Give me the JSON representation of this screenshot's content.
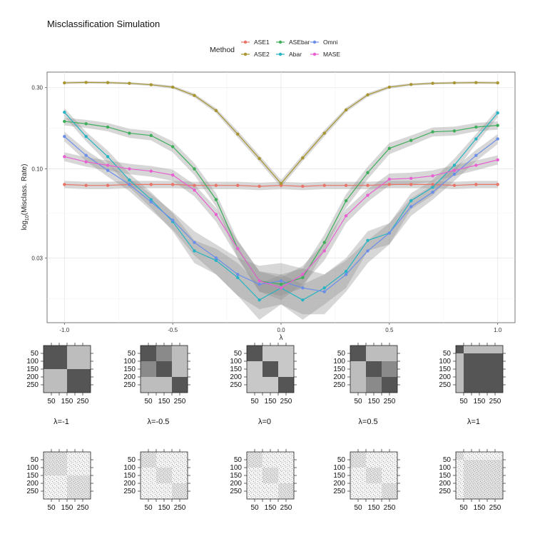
{
  "chart_data": {
    "type": "line",
    "title": "Misclassification Simulation",
    "xlabel": "λ",
    "ylabel": "log10(Misclass. Rate)",
    "ylabel_main": "log",
    "ylabel_sub": "10",
    "ylabel_rest": "(Misclass. Rate)",
    "y_scale": "log10",
    "xlim": [
      -1.08,
      1.08
    ],
    "ylim": [
      0.0125,
      0.37
    ],
    "x_ticks": [
      -1.0,
      -0.5,
      0.0,
      0.5,
      1.0
    ],
    "x_tick_labels": [
      "-1.0",
      "-0.5",
      "0.0",
      "0.5",
      "1.0"
    ],
    "y_ticks": [
      0.03,
      0.1,
      0.3
    ],
    "y_tick_labels": [
      "0.03",
      "0.10",
      "0.30"
    ],
    "grid": true,
    "legend": {
      "title": "Method",
      "placement": "top",
      "entries": [
        "ASE1",
        "ASE2",
        "ASEbar",
        "Abar",
        "Omni",
        "MASE"
      ]
    },
    "x": [
      -1.0,
      -0.9,
      -0.8,
      -0.7,
      -0.6,
      -0.5,
      -0.4,
      -0.3,
      -0.2,
      -0.1,
      0.0,
      0.1,
      0.2,
      0.3,
      0.4,
      0.5,
      0.6,
      0.7,
      0.8,
      0.9,
      1.0
    ],
    "series": [
      {
        "name": "ASE1",
        "color": "#e8746a",
        "values": [
          0.081,
          0.08,
          0.08,
          0.081,
          0.081,
          0.081,
          0.08,
          0.08,
          0.08,
          0.079,
          0.08,
          0.079,
          0.08,
          0.08,
          0.08,
          0.081,
          0.081,
          0.081,
          0.08,
          0.081,
          0.081
        ],
        "band": [
          0.004,
          0.004,
          0.004,
          0.004,
          0.004,
          0.004,
          0.004,
          0.004,
          0.004,
          0.004,
          0.004,
          0.004,
          0.004,
          0.004,
          0.004,
          0.004,
          0.004,
          0.004,
          0.004,
          0.004,
          0.004
        ]
      },
      {
        "name": "ASE2",
        "color": "#a89632",
        "values": [
          0.32,
          0.322,
          0.321,
          0.318,
          0.312,
          0.302,
          0.27,
          0.22,
          0.16,
          0.115,
          0.082,
          0.116,
          0.162,
          0.222,
          0.272,
          0.302,
          0.313,
          0.318,
          0.32,
          0.321,
          0.32
        ],
        "band": [
          0.005,
          0.005,
          0.005,
          0.005,
          0.005,
          0.006,
          0.007,
          0.007,
          0.007,
          0.005,
          0.004,
          0.005,
          0.007,
          0.007,
          0.007,
          0.006,
          0.005,
          0.005,
          0.005,
          0.005,
          0.005
        ]
      },
      {
        "name": "ASEbar",
        "color": "#3fae5b",
        "values": [
          0.19,
          0.184,
          0.176,
          0.162,
          0.157,
          0.135,
          0.1,
          0.066,
          0.034,
          0.022,
          0.021,
          0.023,
          0.037,
          0.065,
          0.095,
          0.132,
          0.147,
          0.165,
          0.167,
          0.176,
          0.18
        ],
        "band": [
          0.01,
          0.01,
          0.01,
          0.01,
          0.01,
          0.01,
          0.008,
          0.006,
          0.004,
          0.003,
          0.003,
          0.003,
          0.004,
          0.006,
          0.008,
          0.01,
          0.01,
          0.01,
          0.01,
          0.01,
          0.01
        ]
      },
      {
        "name": "Abar",
        "color": "#27b4c3",
        "values": [
          0.215,
          0.155,
          0.118,
          0.086,
          0.066,
          0.049,
          0.033,
          0.029,
          0.023,
          0.017,
          0.02,
          0.017,
          0.02,
          0.025,
          0.038,
          0.042,
          0.065,
          0.078,
          0.105,
          0.15,
          0.213
        ],
        "band": [
          0.012,
          0.01,
          0.01,
          0.008,
          0.007,
          0.006,
          0.005,
          0.005,
          0.005,
          0.004,
          0.004,
          0.004,
          0.004,
          0.005,
          0.005,
          0.006,
          0.007,
          0.008,
          0.01,
          0.01,
          0.012
        ]
      },
      {
        "name": "Omni",
        "color": "#6b8ee8",
        "values": [
          0.155,
          0.12,
          0.098,
          0.081,
          0.064,
          0.05,
          0.037,
          0.03,
          0.024,
          0.021,
          0.022,
          0.02,
          0.019,
          0.024,
          0.033,
          0.042,
          0.06,
          0.073,
          0.093,
          0.12,
          0.15
        ],
        "band": [
          0.01,
          0.009,
          0.008,
          0.007,
          0.007,
          0.006,
          0.006,
          0.006,
          0.006,
          0.006,
          0.006,
          0.006,
          0.005,
          0.005,
          0.005,
          0.006,
          0.007,
          0.007,
          0.008,
          0.009,
          0.01
        ]
      },
      {
        "name": "MASE",
        "color": "#e85fd2",
        "values": [
          0.118,
          0.11,
          0.105,
          0.1,
          0.097,
          0.092,
          0.075,
          0.054,
          0.034,
          0.022,
          0.02,
          0.024,
          0.033,
          0.053,
          0.07,
          0.087,
          0.088,
          0.091,
          0.098,
          0.105,
          0.113
        ],
        "band": [
          0.007,
          0.007,
          0.007,
          0.007,
          0.007,
          0.007,
          0.006,
          0.005,
          0.004,
          0.003,
          0.003,
          0.003,
          0.004,
          0.005,
          0.006,
          0.007,
          0.007,
          0.007,
          0.007,
          0.007,
          0.007
        ]
      }
    ],
    "panels": {
      "labels": [
        "λ=-1",
        "λ=-0.5",
        "λ=0",
        "λ=0.5",
        "λ=1"
      ],
      "axis_ticks": [
        50,
        100,
        150,
        200,
        250
      ],
      "x_tick_labels": [
        "50",
        "150",
        "250"
      ],
      "y_tick_labels": [
        "50",
        "100",
        "150",
        "200",
        "250"
      ],
      "n": 300,
      "block_size": 150
    }
  }
}
